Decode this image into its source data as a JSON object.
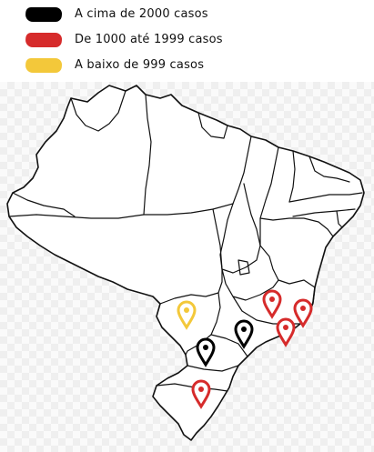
{
  "legend": {
    "items": [
      {
        "label": "A cima de 2000 casos",
        "color": "#000000"
      },
      {
        "label": "De 1000 até 1999 casos",
        "color": "#d62b2b"
      },
      {
        "label": "A baixo de 999 casos",
        "color": "#f3c83a"
      }
    ]
  },
  "map": {
    "country": "Brasil",
    "markers": [
      {
        "state": "SP",
        "category": "A cima de 2000 casos",
        "color": "#000000",
        "icon": "map-pin-icon"
      },
      {
        "state": "PR",
        "category": "A cima de 2000 casos",
        "color": "#000000",
        "icon": "map-pin-icon"
      },
      {
        "state": "MG",
        "category": "De 1000 até 1999 casos",
        "color": "#d62b2b",
        "icon": "map-pin-icon"
      },
      {
        "state": "ES",
        "category": "De 1000 até 1999 casos",
        "color": "#d62b2b",
        "icon": "map-pin-icon"
      },
      {
        "state": "RJ",
        "category": "De 1000 até 1999 casos",
        "color": "#d62b2b",
        "icon": "map-pin-icon"
      },
      {
        "state": "RS",
        "category": "De 1000 até 1999 casos",
        "color": "#d62b2b",
        "icon": "map-pin-icon"
      },
      {
        "state": "MS",
        "category": "A baixo de 999 casos",
        "color": "#f3c83a",
        "icon": "map-pin-icon"
      }
    ]
  }
}
